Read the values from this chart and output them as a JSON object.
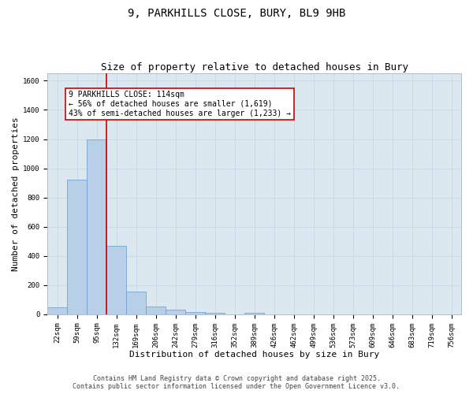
{
  "title_line1": "9, PARKHILLS CLOSE, BURY, BL9 9HB",
  "title_line2": "Size of property relative to detached houses in Bury",
  "xlabel": "Distribution of detached houses by size in Bury",
  "ylabel": "Number of detached properties",
  "categories": [
    "22sqm",
    "59sqm",
    "95sqm",
    "132sqm",
    "169sqm",
    "206sqm",
    "242sqm",
    "279sqm",
    "316sqm",
    "352sqm",
    "389sqm",
    "426sqm",
    "462sqm",
    "499sqm",
    "536sqm",
    "573sqm",
    "609sqm",
    "646sqm",
    "683sqm",
    "719sqm",
    "756sqm"
  ],
  "values": [
    50,
    920,
    1200,
    470,
    155,
    55,
    30,
    15,
    10,
    0,
    8,
    0,
    0,
    0,
    0,
    0,
    0,
    0,
    0,
    0,
    0
  ],
  "bar_color": "#b8cfe8",
  "bar_edge_color": "#6699cc",
  "vline_color": "#cc0000",
  "annotation_text": "9 PARKHILLS CLOSE: 114sqm\n← 56% of detached houses are smaller (1,619)\n43% of semi-detached houses are larger (1,233) →",
  "annotation_box_color": "#ffffff",
  "annotation_box_edge_color": "#cc0000",
  "ylim": [
    0,
    1650
  ],
  "yticks": [
    0,
    200,
    400,
    600,
    800,
    1000,
    1200,
    1400,
    1600
  ],
  "grid_color": "#c8d8e8",
  "bg_color": "#dce8f0",
  "fig_bg_color": "#ffffff",
  "footer_line1": "Contains HM Land Registry data © Crown copyright and database right 2025.",
  "footer_line2": "Contains public sector information licensed under the Open Government Licence v3.0.",
  "title_fontsize": 10,
  "subtitle_fontsize": 9,
  "axis_label_fontsize": 8,
  "tick_fontsize": 6.5,
  "annotation_fontsize": 7,
  "footer_fontsize": 6
}
